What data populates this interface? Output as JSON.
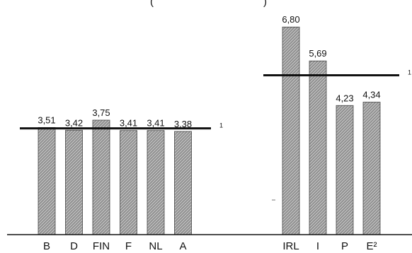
{
  "chart_data": {
    "type": "bar",
    "title": "",
    "xlabel": "",
    "ylabel": "",
    "ylim": [
      0,
      7
    ],
    "grid": false,
    "legend": "none",
    "bar_color": "#9a9a9a",
    "line_color": "#111111",
    "groups": [
      {
        "categories": [
          "B",
          "D",
          "FIN",
          "F",
          "NL",
          "A"
        ],
        "value_labels": [
          "3,51",
          "3,42",
          "3,75",
          "3,41",
          "3,41",
          "3,38"
        ],
        "values": [
          3.51,
          3.42,
          3.75,
          3.41,
          3.41,
          3.38
        ],
        "reference_value": 3.48,
        "reference_note": "1"
      },
      {
        "categories": [
          "IRL",
          "I",
          "P",
          "E²"
        ],
        "value_labels": [
          "6,80",
          "5,69",
          "4,23",
          "4,34"
        ],
        "values": [
          6.8,
          5.69,
          4.23,
          4.34
        ],
        "reference_value": 5.22,
        "reference_note": "1"
      }
    ]
  }
}
